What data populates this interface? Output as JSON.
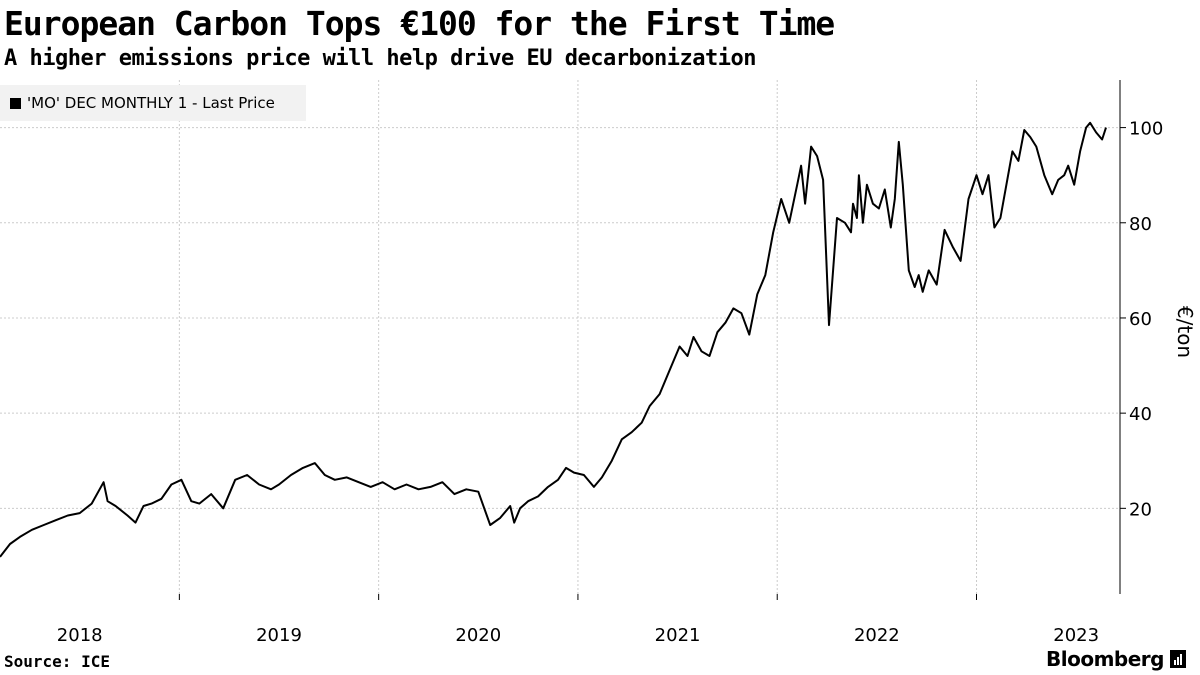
{
  "title": "European Carbon Tops €100 for the First Time",
  "subtitle": "A higher emissions price will help drive EU decarbonization",
  "source": "Source: ICE",
  "brand": "Bloomberg",
  "colors": {
    "line": "#000000",
    "grid": "#cccccc",
    "legend_bg": "#f2f2f2"
  },
  "chart_data": {
    "type": "line",
    "title": "European Carbon Tops €100 for the First Time",
    "ylabel": "€/ton",
    "xlabel": "",
    "ylim": [
      2,
      110
    ],
    "yticks": [
      20,
      40,
      60,
      80,
      100
    ],
    "xlim": [
      2017.6,
      2023.22
    ],
    "xticks": [
      {
        "label": "2018",
        "x": 2018.0
      },
      {
        "label": "2019",
        "x": 2019.0
      },
      {
        "label": "2020",
        "x": 2020.0
      },
      {
        "label": "2021",
        "x": 2021.0
      },
      {
        "label": "2022",
        "x": 2022.0
      },
      {
        "label": "2023",
        "x": 2023.0
      }
    ],
    "grid": true,
    "series": [
      {
        "name": "'MO' DEC MONTHLY 1 - Last Price",
        "x": [
          2017.6,
          2017.65,
          2017.7,
          2017.76,
          2017.82,
          2017.88,
          2017.94,
          2018.0,
          2018.06,
          2018.12,
          2018.14,
          2018.18,
          2018.24,
          2018.28,
          2018.32,
          2018.36,
          2018.41,
          2018.46,
          2018.51,
          2018.56,
          2018.6,
          2018.66,
          2018.72,
          2018.78,
          2018.84,
          2018.9,
          2018.96,
          2019.0,
          2019.06,
          2019.12,
          2019.18,
          2019.23,
          2019.28,
          2019.34,
          2019.4,
          2019.46,
          2019.52,
          2019.58,
          2019.64,
          2019.7,
          2019.76,
          2019.82,
          2019.88,
          2019.94,
          2020.0,
          2020.06,
          2020.11,
          2020.16,
          2020.18,
          2020.21,
          2020.25,
          2020.3,
          2020.35,
          2020.4,
          2020.44,
          2020.48,
          2020.53,
          2020.58,
          2020.62,
          2020.67,
          2020.72,
          2020.77,
          2020.82,
          2020.86,
          2020.91,
          2020.96,
          2021.01,
          2021.05,
          2021.08,
          2021.12,
          2021.16,
          2021.2,
          2021.24,
          2021.28,
          2021.32,
          2021.36,
          2021.4,
          2021.44,
          2021.48,
          2021.52,
          2021.56,
          2021.6,
          2021.62,
          2021.64,
          2021.67,
          2021.7,
          2021.73,
          2021.76,
          2021.8,
          2021.84,
          2021.87,
          2021.88,
          2021.9,
          2021.91,
          2021.93,
          2021.95,
          2021.98,
          2022.01,
          2022.04,
          2022.07,
          2022.09,
          2022.11,
          2022.13,
          2022.16,
          2022.19,
          2022.21,
          2022.23,
          2022.26,
          2022.3,
          2022.34,
          2022.38,
          2022.42,
          2022.46,
          2022.5,
          2022.53,
          2022.56,
          2022.59,
          2022.62,
          2022.65,
          2022.68,
          2022.71,
          2022.74,
          2022.77,
          2022.8,
          2022.84,
          2022.88,
          2022.91,
          2022.94,
          2022.96,
          2022.99,
          2023.02,
          2023.05,
          2023.07,
          2023.1,
          2023.13,
          2023.15
        ],
        "values": [
          9.8,
          12.5,
          14.0,
          15.5,
          16.5,
          17.5,
          18.5,
          19.0,
          21.0,
          25.5,
          21.5,
          20.5,
          18.5,
          17.0,
          20.5,
          21.0,
          22.0,
          25.0,
          26.0,
          21.5,
          21.0,
          23.0,
          20.0,
          26.0,
          27.0,
          25.0,
          24.0,
          25.0,
          27.0,
          28.5,
          29.5,
          27.0,
          26.0,
          26.5,
          25.5,
          24.5,
          25.5,
          24.0,
          25.0,
          24.0,
          24.5,
          25.5,
          23.0,
          24.0,
          23.5,
          16.5,
          18.0,
          20.5,
          17.0,
          20.0,
          21.5,
          22.5,
          24.5,
          26.0,
          28.5,
          27.5,
          27.0,
          24.5,
          26.5,
          30.0,
          34.5,
          36.0,
          38.0,
          41.5,
          44.0,
          49.0,
          54.0,
          52.0,
          56.0,
          53.0,
          52.0,
          57.0,
          59.0,
          62.0,
          61.0,
          56.5,
          65.0,
          69.0,
          78.0,
          85.0,
          80.0,
          88.0,
          92.0,
          84.0,
          96.0,
          94.0,
          89.0,
          58.5,
          81.0,
          80.0,
          78.0,
          84.0,
          81.0,
          90.0,
          80.0,
          88.0,
          84.0,
          83.0,
          87.0,
          79.0,
          85.0,
          97.0,
          88.0,
          70.0,
          66.5,
          69.0,
          65.5,
          70.0,
          67.0,
          78.5,
          75.0,
          72.0,
          85.0,
          90.0,
          86.0,
          90.0,
          79.0,
          81.0,
          88.0,
          95.0,
          93.0,
          99.5,
          98.0,
          96.0,
          90.0,
          86.0,
          89.0,
          90.0,
          92.0,
          88.0,
          95.0,
          100.0,
          101.0,
          99.0,
          97.5,
          100.0
        ],
        "color": "#000000"
      }
    ]
  }
}
